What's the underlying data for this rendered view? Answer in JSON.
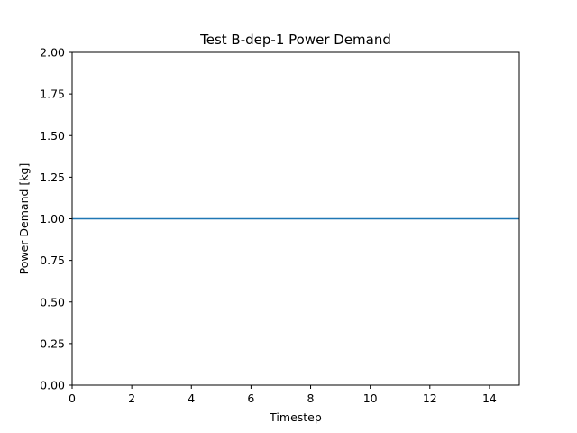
{
  "chart_data": {
    "type": "line",
    "title": "Test B-dep-1 Power Demand",
    "xlabel": "Timestep",
    "ylabel": "Power Demand [kg]",
    "xlim": [
      0,
      15
    ],
    "ylim": [
      0,
      2
    ],
    "xticks": [
      0,
      2,
      4,
      6,
      8,
      10,
      12,
      14
    ],
    "yticks": [
      0,
      0.25,
      0.5,
      0.75,
      1.0,
      1.25,
      1.5,
      1.75,
      2.0
    ],
    "xtick_labels": [
      "0",
      "2",
      "4",
      "6",
      "8",
      "10",
      "12",
      "14"
    ],
    "ytick_labels": [
      "0.00",
      "0.25",
      "0.50",
      "0.75",
      "1.00",
      "1.25",
      "1.50",
      "1.75",
      "2.00"
    ],
    "grid": false,
    "series": [
      {
        "color": "#1f77b4",
        "x": [
          0,
          1,
          2,
          3,
          4,
          5,
          6,
          7,
          8,
          9,
          10,
          11,
          12,
          13,
          14,
          15
        ],
        "y": [
          1,
          1,
          1,
          1,
          1,
          1,
          1,
          1,
          1,
          1,
          1,
          1,
          1,
          1,
          1,
          1
        ]
      }
    ]
  }
}
